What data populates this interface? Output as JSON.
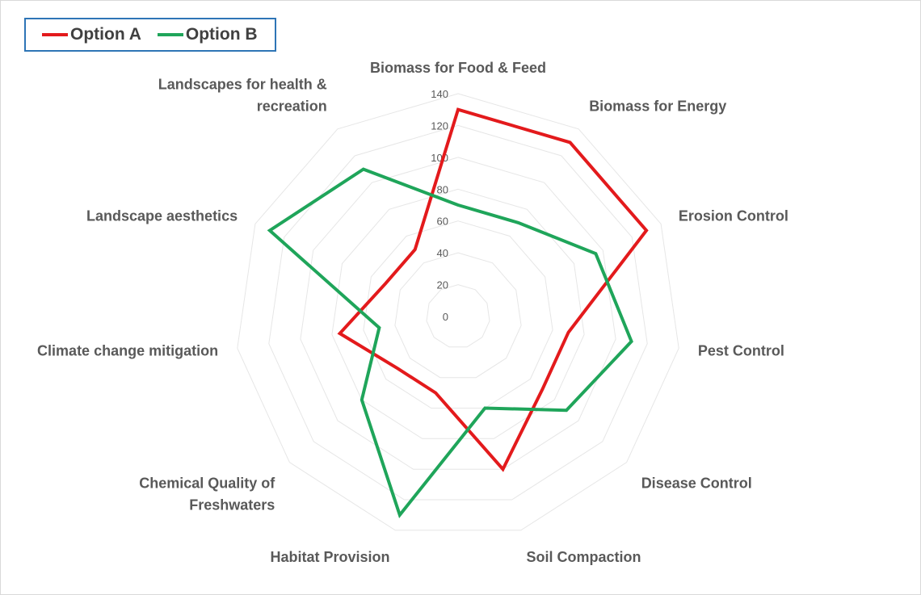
{
  "chart_data": {
    "type": "radar",
    "categories": [
      "Biomass for Food & Feed",
      "Biomass for Energy",
      "Erosion Control",
      "Pest Control",
      "Disease Control",
      "Soil Compaction",
      "Habitat Provision",
      "Chemical Quality of Freshwaters",
      "Climate change mitigation",
      "Landscape aesthetics",
      "Landscapes for health & recreation"
    ],
    "category_lines": [
      [
        "Biomass for Food & Feed"
      ],
      [
        "Biomass for Energy"
      ],
      [
        "Erosion Control"
      ],
      [
        "Pest Control"
      ],
      [
        "Disease Control"
      ],
      [
        "Soil Compaction"
      ],
      [
        "Habitat Provision"
      ],
      [
        "Chemical Quality of",
        "Freshwaters"
      ],
      [
        "Climate change mitigation"
      ],
      [
        "Landscape aesthetics"
      ],
      [
        "Landscapes for health &",
        "recreation"
      ]
    ],
    "series": [
      {
        "name": "Option A",
        "color": "#e31a1c",
        "values": [
          130,
          130,
          130,
          70,
          70,
          100,
          50,
          50,
          75,
          50,
          50
        ]
      },
      {
        "name": "Option B",
        "color": "#1fa55a",
        "values": [
          70,
          70,
          95,
          110,
          90,
          60,
          130,
          80,
          50,
          130,
          110
        ]
      }
    ],
    "ticks": [
      0,
      20,
      40,
      60,
      80,
      100,
      120,
      140
    ],
    "rlim": [
      0,
      140
    ],
    "grid": true,
    "legend_position": "top-left"
  }
}
